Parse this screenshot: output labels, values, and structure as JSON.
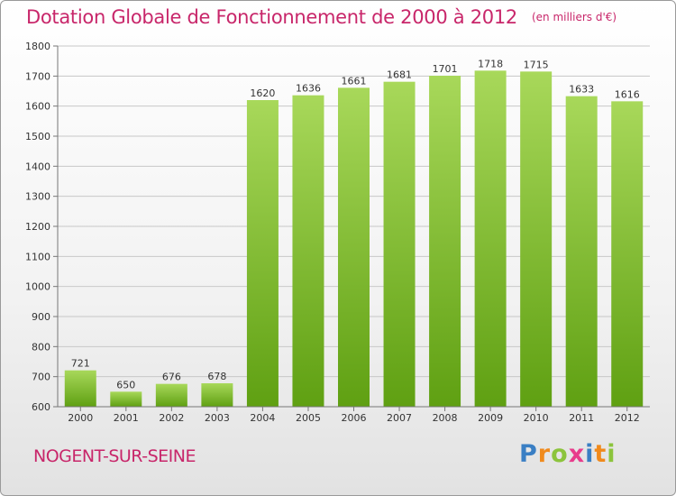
{
  "header": {
    "title": "Dotation Globale de Fonctionnement de 2000 à 2012",
    "unit": "(en milliers d'€)"
  },
  "footer": {
    "commune": "NOGENT-SUR-SEINE",
    "logo": [
      {
        "char": "P",
        "color": "#3a7fc4"
      },
      {
        "char": "r",
        "color": "#f08a1c"
      },
      {
        "char": "o",
        "color": "#8cc43c"
      },
      {
        "char": "x",
        "color": "#e83c8c"
      },
      {
        "char": "i",
        "color": "#3a7fc4"
      },
      {
        "char": "t",
        "color": "#f08a1c"
      },
      {
        "char": "i",
        "color": "#8cc43c"
      }
    ]
  },
  "colors": {
    "bar_top": "#a8d85a",
    "bar_bottom": "#5fa012",
    "title": "#c8266a",
    "grid": "#c8c8c8",
    "axis": "#777777",
    "text": "#333333"
  },
  "chart_data": {
    "type": "bar",
    "title": "Dotation Globale de Fonctionnement de 2000 à 2012",
    "subtitle": "(en milliers d'€)",
    "categories": [
      "2000",
      "2001",
      "2002",
      "2003",
      "2004",
      "2005",
      "2006",
      "2007",
      "2008",
      "2009",
      "2010",
      "2011",
      "2012"
    ],
    "values": [
      721,
      650,
      676,
      678,
      1620,
      1636,
      1661,
      1681,
      1701,
      1718,
      1715,
      1633,
      1616
    ],
    "yticks": [
      600,
      700,
      800,
      900,
      1000,
      1100,
      1200,
      1300,
      1400,
      1500,
      1600,
      1700,
      1800
    ],
    "ylim": [
      600,
      1800
    ],
    "xlabel": "",
    "ylabel": "",
    "grid": true,
    "data_labels": true
  }
}
